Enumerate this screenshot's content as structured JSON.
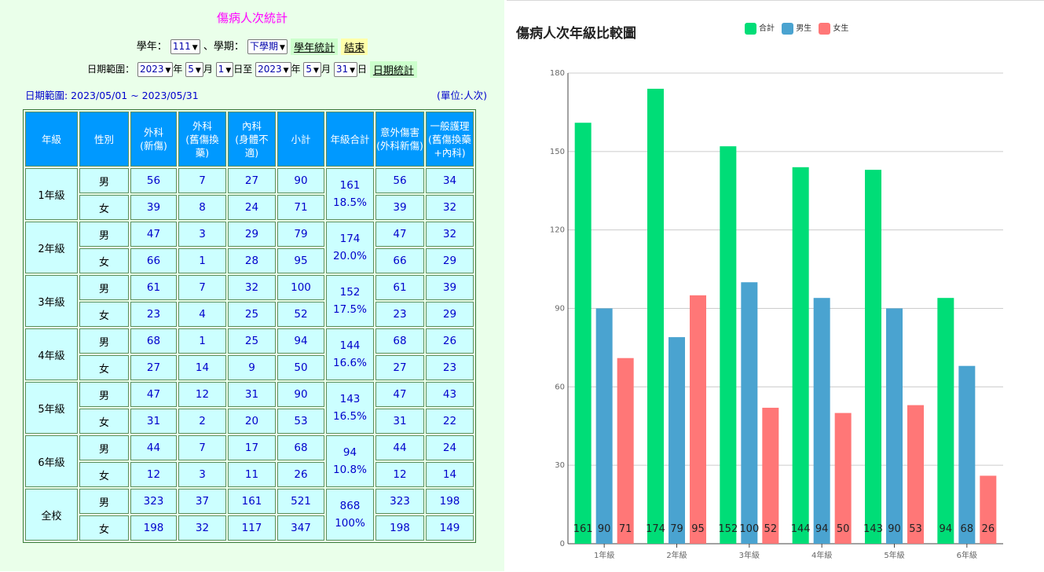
{
  "form": {
    "title": "傷病人次統計",
    "year_label": "學年：",
    "year_value": "111",
    "term_label": "、學期：",
    "term_value": "下學期",
    "btn_year_stats": "學年統計",
    "btn_end": "結束",
    "date_label": "日期範圍：",
    "start_year": "2023",
    "start_month": "5",
    "start_day": "1",
    "end_year": "2023",
    "end_month": "5",
    "end_day": "31",
    "year_unit": "年",
    "month_unit": "月",
    "day_unit": "日",
    "to_label": "至",
    "btn_date_stats": "日期統計",
    "range_text": "日期範圍: 2023/05/01 ~ 2023/05/31",
    "unit_text": "(單位:人次)"
  },
  "table": {
    "headers": [
      "年級",
      "性別",
      "外科\n(新傷)",
      "外科\n(舊傷換藥)",
      "內科\n(身體不適)",
      "小計",
      "年級合計",
      "意外傷害\n(外科新傷)",
      "一般護理\n(舊傷換藥\n+內科)"
    ],
    "groups": [
      {
        "grade": "1年級",
        "total": "161",
        "pct": "18.5%",
        "rows": [
          {
            "sex": "男",
            "vals": [
              "56",
              "7",
              "27",
              "90"
            ],
            "acc": "56",
            "care": "34"
          },
          {
            "sex": "女",
            "vals": [
              "39",
              "8",
              "24",
              "71"
            ],
            "acc": "39",
            "care": "32"
          }
        ]
      },
      {
        "grade": "2年級",
        "total": "174",
        "pct": "20.0%",
        "rows": [
          {
            "sex": "男",
            "vals": [
              "47",
              "3",
              "29",
              "79"
            ],
            "acc": "47",
            "care": "32"
          },
          {
            "sex": "女",
            "vals": [
              "66",
              "1",
              "28",
              "95"
            ],
            "acc": "66",
            "care": "29"
          }
        ]
      },
      {
        "grade": "3年級",
        "total": "152",
        "pct": "17.5%",
        "rows": [
          {
            "sex": "男",
            "vals": [
              "61",
              "7",
              "32",
              "100"
            ],
            "acc": "61",
            "care": "39"
          },
          {
            "sex": "女",
            "vals": [
              "23",
              "4",
              "25",
              "52"
            ],
            "acc": "23",
            "care": "29"
          }
        ]
      },
      {
        "grade": "4年級",
        "total": "144",
        "pct": "16.6%",
        "rows": [
          {
            "sex": "男",
            "vals": [
              "68",
              "1",
              "25",
              "94"
            ],
            "acc": "68",
            "care": "26"
          },
          {
            "sex": "女",
            "vals": [
              "27",
              "14",
              "9",
              "50"
            ],
            "acc": "27",
            "care": "23"
          }
        ]
      },
      {
        "grade": "5年級",
        "total": "143",
        "pct": "16.5%",
        "rows": [
          {
            "sex": "男",
            "vals": [
              "47",
              "12",
              "31",
              "90"
            ],
            "acc": "47",
            "care": "43"
          },
          {
            "sex": "女",
            "vals": [
              "31",
              "2",
              "20",
              "53"
            ],
            "acc": "31",
            "care": "22"
          }
        ]
      },
      {
        "grade": "6年級",
        "total": "94",
        "pct": "10.8%",
        "rows": [
          {
            "sex": "男",
            "vals": [
              "44",
              "7",
              "17",
              "68"
            ],
            "acc": "44",
            "care": "24"
          },
          {
            "sex": "女",
            "vals": [
              "12",
              "3",
              "11",
              "26"
            ],
            "acc": "12",
            "care": "14"
          }
        ]
      },
      {
        "grade": "全校",
        "total": "868",
        "pct": "100%",
        "rows": [
          {
            "sex": "男",
            "vals": [
              "323",
              "37",
              "161",
              "521"
            ],
            "acc": "323",
            "care": "198"
          },
          {
            "sex": "女",
            "vals": [
              "198",
              "32",
              "117",
              "347"
            ],
            "acc": "198",
            "care": "149"
          }
        ]
      }
    ]
  },
  "colors": {
    "total": "#00dd77",
    "male": "#4aa3d0",
    "female": "#ff7777"
  },
  "chart_data": {
    "type": "bar",
    "title": "傷病人次年級比較圖",
    "categories": [
      "1年級",
      "2年級",
      "3年級",
      "4年級",
      "5年級",
      "6年級"
    ],
    "series": [
      {
        "name": "合計",
        "values": [
          161,
          174,
          152,
          144,
          143,
          94
        ]
      },
      {
        "name": "男生",
        "values": [
          90,
          79,
          100,
          94,
          90,
          68
        ]
      },
      {
        "name": "女生",
        "values": [
          71,
          95,
          52,
          50,
          53,
          26
        ]
      }
    ],
    "yticks": [
      0,
      30,
      60,
      90,
      120,
      150,
      180
    ],
    "ylim": [
      0,
      180
    ],
    "grid": true,
    "legend": "top-center"
  }
}
